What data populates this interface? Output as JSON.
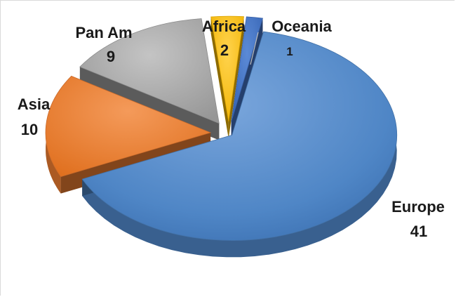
{
  "chart_data": {
    "type": "pie",
    "style": "3d-exploded",
    "categories": [
      "Europe",
      "Asia",
      "Pan Am",
      "Africa",
      "Oceania"
    ],
    "values": [
      41,
      10,
      9,
      2,
      1
    ],
    "data_labels": [
      "41",
      "10",
      "9",
      "2",
      "1"
    ],
    "colors": [
      "#4f86c6",
      "#ed7d31",
      "#a5a5a5",
      "#ffc000",
      "#4472c4"
    ],
    "title": "",
    "legend": "none"
  }
}
